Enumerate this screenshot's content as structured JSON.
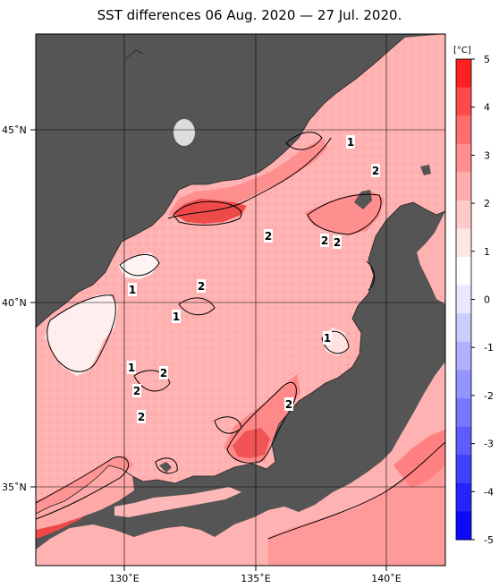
{
  "title": "SST differences 06 Aug. 2020 — 27 Jul. 2020.",
  "colorbar": {
    "unit": "[°C]",
    "ticks": [
      "5",
      "4",
      "3",
      "2",
      "1",
      "0",
      "-1",
      "-2",
      "-3",
      "-4",
      "-5"
    ],
    "colors": [
      "#ff2020",
      "#ff4a4a",
      "#ff6e6e",
      "#ff8e8e",
      "#ffacac",
      "#ffcaca",
      "#ffe6e6",
      "#ffffff",
      "#e8e8ff",
      "#ccccff",
      "#b0b0ff",
      "#9494ff",
      "#7878ff",
      "#5c5cff",
      "#4040ff",
      "#2424ff",
      "#0a0aff"
    ]
  },
  "axes": {
    "lat_labels": [
      "45˚N",
      "40˚N",
      "35˚N"
    ],
    "lon_labels": [
      "130˚E",
      "135˚E",
      "140˚E"
    ]
  },
  "colors": {
    "land": "#555555",
    "base_sea": "#ffb2b2",
    "warm": "#ff7070",
    "hot": "#f04040",
    "cool": "#fff0f0"
  },
  "contour_labels": [
    {
      "text": "1"
    },
    {
      "text": "2"
    },
    {
      "text": "2"
    },
    {
      "text": "2"
    },
    {
      "text": "2"
    },
    {
      "text": "1"
    },
    {
      "text": "2"
    },
    {
      "text": "1"
    },
    {
      "text": "1"
    },
    {
      "text": "1"
    },
    {
      "text": "2"
    },
    {
      "text": "2"
    },
    {
      "text": "2"
    },
    {
      "text": "2"
    }
  ]
}
